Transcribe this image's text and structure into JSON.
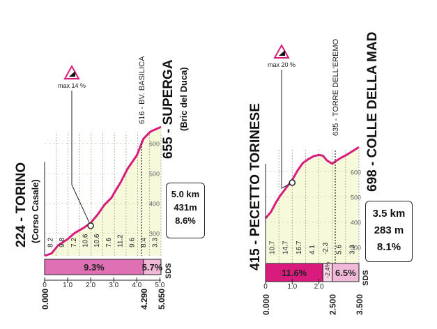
{
  "chart_data": [
    {
      "type": "area",
      "start_place": "224 - TORINO",
      "start_place_sub": "(Corso Casale)",
      "end_place": "655 - SUPERGA",
      "end_place_sub": "(Bric del Duca)",
      "waypoint": "616 - BV. BASILICA",
      "max_gradient": "max 14 %",
      "stats": [
        "5.0 km",
        "431m",
        "8.6%"
      ],
      "sds": "SDS",
      "x_unit": "km",
      "xlim": [
        0,
        5.05
      ],
      "ylim": [
        224,
        660
      ],
      "profile_x": [
        0,
        0.3,
        0.6,
        1.0,
        1.3,
        1.7,
        2.0,
        2.3,
        2.6,
        2.9,
        3.0,
        3.3,
        3.6,
        4.0,
        4.29,
        4.6,
        5.05
      ],
      "profile_y": [
        224,
        232,
        260,
        280,
        300,
        318,
        334,
        362,
        395,
        418,
        432,
        470,
        515,
        560,
        616,
        640,
        655
      ],
      "y_ticks": [
        "300",
        "400",
        "500",
        "600"
      ],
      "y_tick_values": [
        300,
        400,
        500,
        600
      ],
      "x_tick_labels": [
        "0",
        "1.0",
        "2.0",
        "3.0",
        "4.0",
        "5.0"
      ],
      "x_tick_values": [
        0,
        1,
        2,
        3,
        4,
        5
      ],
      "gradients": [
        "8.2",
        "9.8",
        "7.2",
        "10.6",
        "10.6",
        "7.6",
        "11.2",
        "9.6",
        "8.4",
        "3.3"
      ],
      "segment_bars": [
        {
          "label": "9.3%",
          "from": 0,
          "to": 4.29,
          "color": "#e070b4"
        },
        {
          "label": "5.7%",
          "from": 4.29,
          "to": 5.05,
          "color": "#f2b8d8"
        }
      ],
      "distance_labels": [
        "0.000",
        "4.290",
        "5.050"
      ],
      "distance_values": [
        0,
        4.29,
        5.05
      ],
      "max_gradient_at": 2.0
    },
    {
      "type": "area",
      "start_place": "415 - PECETTO TORINESE",
      "end_place": "698 - COLLE DELLA MAD",
      "waypoint": "635 - TORRE DELL'EREMO",
      "max_gradient": "max 20 %",
      "stats": [
        "3.5 km",
        "283 m",
        "8.1%"
      ],
      "sds": "SDS",
      "x_unit": "km",
      "xlim": [
        0,
        3.5
      ],
      "ylim": [
        238,
        715
      ],
      "profile_x": [
        0,
        0.2,
        0.4,
        0.55,
        0.8,
        1.0,
        1.2,
        1.4,
        1.6,
        1.8,
        2.0,
        2.15,
        2.3,
        2.5,
        2.65,
        2.85,
        3.0,
        3.2,
        3.5
      ],
      "profile_y": [
        415,
        440,
        480,
        505,
        540,
        568,
        605,
        635,
        650,
        662,
        667,
        664,
        645,
        632,
        644,
        657,
        665,
        678,
        698
      ],
      "y_ticks": [
        "300",
        "400",
        "500",
        "600"
      ],
      "y_tick_values": [
        300,
        400,
        500,
        600
      ],
      "x_tick_labels": [
        "0",
        "1.0",
        "2.0"
      ],
      "x_tick_values": [
        0,
        1,
        2
      ],
      "gradients": [
        "10.7",
        "14.7",
        "16.7",
        "4.1",
        "-2.3",
        "5.6",
        "3.3"
      ],
      "segment_bars": [
        {
          "label": "11.6%",
          "from": 0,
          "to": 2.15,
          "color": "#d81b7c"
        },
        {
          "label": "-2.4%",
          "from": 2.15,
          "to": 2.5,
          "color": "#f9d7e8"
        },
        {
          "label": "6.5%",
          "from": 2.5,
          "to": 3.5,
          "color": "#f2b8d8"
        }
      ],
      "distance_labels": [
        "0.000",
        "2.500",
        "3.500"
      ],
      "distance_values": [
        0,
        2.5,
        3.5
      ],
      "max_gradient_at": 1.0
    }
  ]
}
